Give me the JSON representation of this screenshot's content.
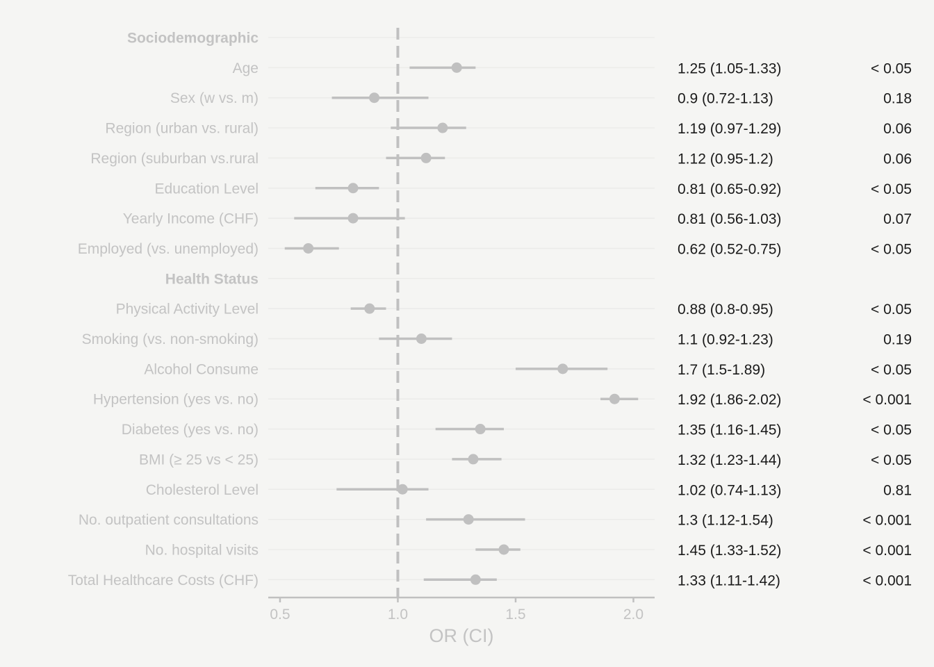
{
  "chart_data": {
    "type": "forest",
    "xlabel": "OR (CI)",
    "xlim": [
      0.45,
      2.09
    ],
    "xticks": [
      0.5,
      1.0,
      1.5,
      2.0
    ],
    "xtick_labels": [
      "0.5",
      "1.0",
      "1.5",
      "2.0"
    ],
    "reference_line": 1.0,
    "grid": "horizontal",
    "colors": {
      "marker": "#c0c0c0",
      "reference": "#c0c0c0",
      "label": "#c3c3c3",
      "annotation": "#1a1a1a",
      "background": "#f5f5f3"
    },
    "rows": [
      {
        "label": "Sociodemographic",
        "header": true
      },
      {
        "label": "Age",
        "or": 1.25,
        "lo": 1.05,
        "hi": 1.33,
        "or_text": "1.25 (1.05-1.33)",
        "p": "< 0.05"
      },
      {
        "label": "Sex (w vs. m)",
        "or": 0.9,
        "lo": 0.72,
        "hi": 1.13,
        "or_text": "0.9 (0.72-1.13)",
        "p": "0.18"
      },
      {
        "label": "Region (urban vs. rural)",
        "or": 1.19,
        "lo": 0.97,
        "hi": 1.29,
        "or_text": "1.19 (0.97-1.29)",
        "p": "0.06"
      },
      {
        "label": "Region (suburban vs.rural",
        "or": 1.12,
        "lo": 0.95,
        "hi": 1.2,
        "or_text": "1.12 (0.95-1.2)",
        "p": "0.06"
      },
      {
        "label": "Education Level",
        "or": 0.81,
        "lo": 0.65,
        "hi": 0.92,
        "or_text": "0.81 (0.65-0.92)",
        "p": "< 0.05"
      },
      {
        "label": "Yearly Income (CHF)",
        "or": 0.81,
        "lo": 0.56,
        "hi": 1.03,
        "or_text": "0.81 (0.56-1.03)",
        "p": "0.07"
      },
      {
        "label": "Employed (vs. unemployed)",
        "or": 0.62,
        "lo": 0.52,
        "hi": 0.75,
        "or_text": "0.62 (0.52-0.75)",
        "p": "< 0.05"
      },
      {
        "label": "Health Status",
        "header": true
      },
      {
        "label": "Physical Activity Level",
        "or": 0.88,
        "lo": 0.8,
        "hi": 0.95,
        "or_text": "0.88 (0.8-0.95)",
        "p": "< 0.05"
      },
      {
        "label": "Smoking (vs. non-smoking)",
        "or": 1.1,
        "lo": 0.92,
        "hi": 1.23,
        "or_text": "1.1 (0.92-1.23)",
        "p": "0.19"
      },
      {
        "label": "Alcohol Consume",
        "or": 1.7,
        "lo": 1.5,
        "hi": 1.89,
        "or_text": "1.7 (1.5-1.89)",
        "p": "< 0.05"
      },
      {
        "label": "Hypertension (yes vs. no)",
        "or": 1.92,
        "lo": 1.86,
        "hi": 2.02,
        "or_text": "1.92 (1.86-2.02)",
        "p": "< 0.001"
      },
      {
        "label": "Diabetes (yes vs. no)",
        "or": 1.35,
        "lo": 1.16,
        "hi": 1.45,
        "or_text": "1.35 (1.16-1.45)",
        "p": "< 0.05"
      },
      {
        "label": "BMI (≥ 25 vs < 25)",
        "or": 1.32,
        "lo": 1.23,
        "hi": 1.44,
        "or_text": "1.32 (1.23-1.44)",
        "p": "< 0.05"
      },
      {
        "label": "Cholesterol Level",
        "or": 1.02,
        "lo": 0.74,
        "hi": 1.13,
        "or_text": "1.02 (0.74-1.13)",
        "p": "0.81"
      },
      {
        "label": "No. outpatient consultations",
        "or": 1.3,
        "lo": 1.12,
        "hi": 1.54,
        "or_text": "1.3 (1.12-1.54)",
        "p": "< 0.001"
      },
      {
        "label": "No. hospital visits",
        "or": 1.45,
        "lo": 1.33,
        "hi": 1.52,
        "or_text": "1.45 (1.33-1.52)",
        "p": "< 0.001"
      },
      {
        "label": "Total Healthcare Costs (CHF)",
        "or": 1.33,
        "lo": 1.11,
        "hi": 1.42,
        "or_text": "1.33 (1.11-1.42)",
        "p": "< 0.001"
      }
    ]
  }
}
